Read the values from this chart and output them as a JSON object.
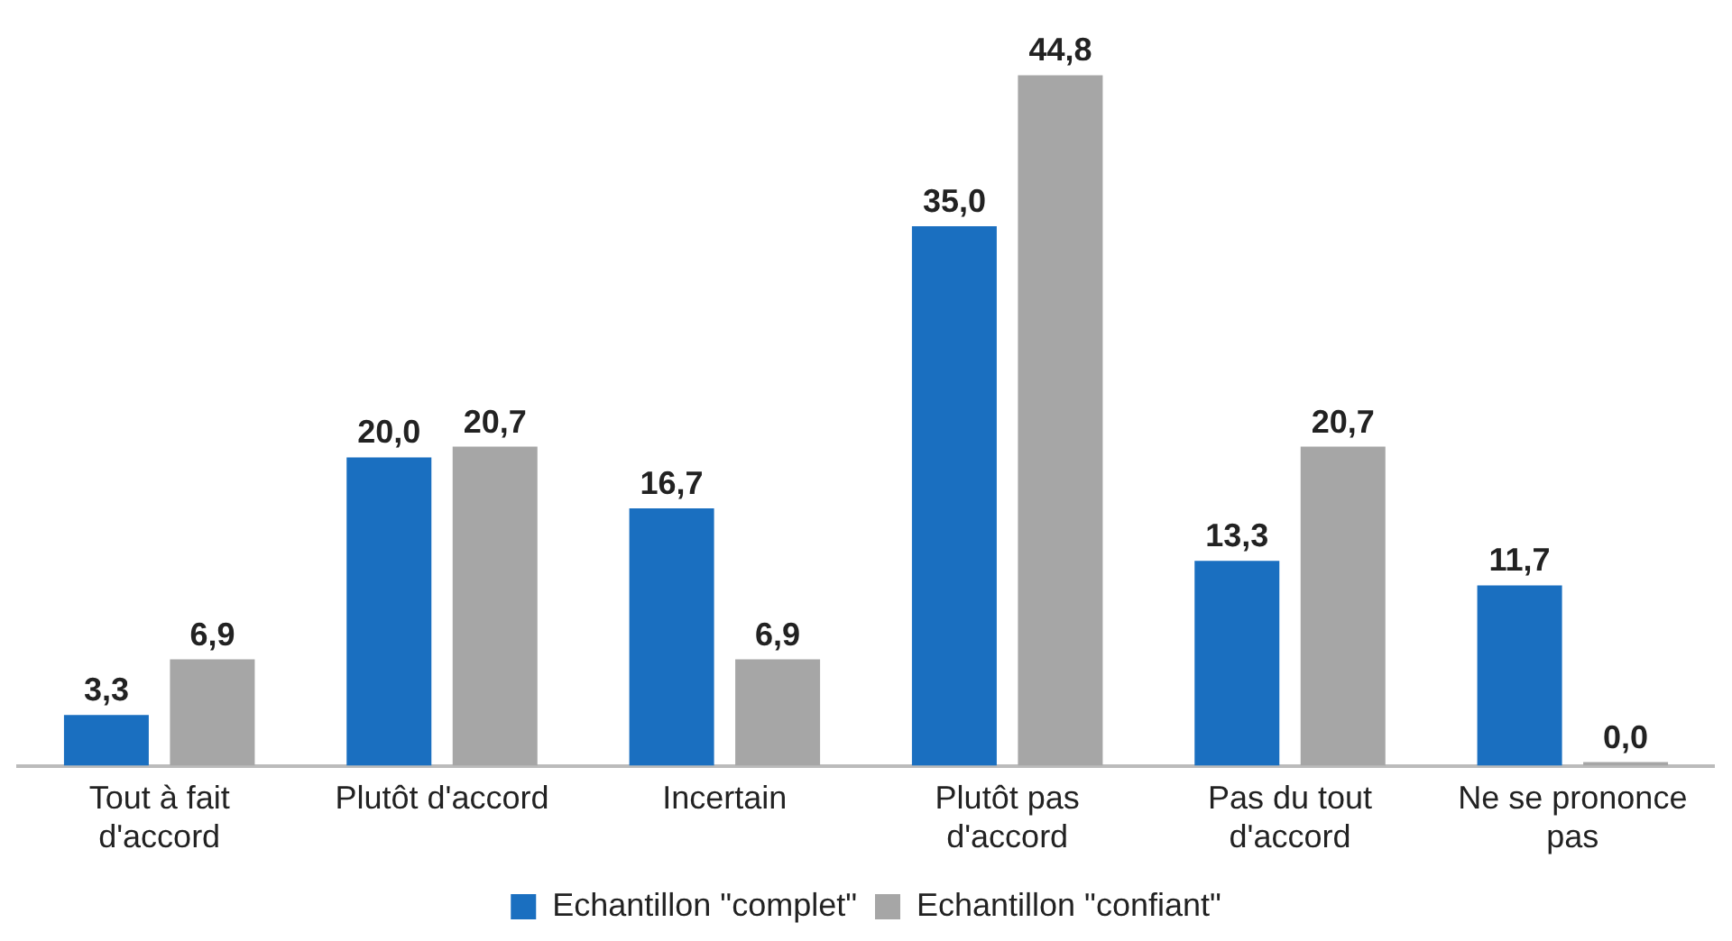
{
  "chart_data": {
    "type": "bar",
    "categories": [
      "Tout à fait d'accord",
      "Plutôt d'accord",
      "Incertain",
      "Plutôt pas d'accord",
      "Pas du tout d'accord",
      "Ne se prononce pas"
    ],
    "series": [
      {
        "name": "Echantillon \"complet\"",
        "color": "#1a6fc0",
        "values": [
          3.3,
          20.0,
          16.7,
          35.0,
          13.3,
          11.7
        ],
        "value_labels": [
          "3,3",
          "20,0",
          "16,7",
          "35,0",
          "13,3",
          "11,7"
        ]
      },
      {
        "name": "Echantillon \"confiant\"",
        "color": "#a6a6a6",
        "values": [
          6.9,
          20.7,
          6.9,
          44.8,
          20.7,
          0.0
        ],
        "value_labels": [
          "6,9",
          "20,7",
          "6,9",
          "44,8",
          "20,7",
          "0,0"
        ]
      }
    ],
    "grid": false,
    "legend": "bottom"
  }
}
